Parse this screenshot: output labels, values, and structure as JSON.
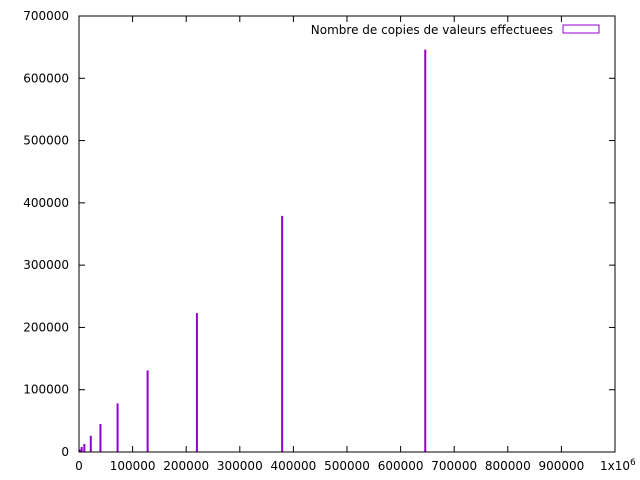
{
  "chart_data": {
    "type": "bar",
    "series": [
      {
        "name": "Nombre de copies de valeurs effectuees",
        "color": "#9400d3",
        "points": [
          {
            "x": 2000,
            "y": 4000
          },
          {
            "x": 5000,
            "y": 8000
          },
          {
            "x": 10000,
            "y": 13000
          },
          {
            "x": 22000,
            "y": 26000
          },
          {
            "x": 40000,
            "y": 45000
          },
          {
            "x": 72000,
            "y": 78000
          },
          {
            "x": 128000,
            "y": 131000
          },
          {
            "x": 220000,
            "y": 223000
          },
          {
            "x": 379000,
            "y": 379000
          },
          {
            "x": 646000,
            "y": 646000
          }
        ]
      }
    ],
    "xlim": [
      0,
      1000000
    ],
    "ylim": [
      0,
      700000
    ],
    "x_ticks": [
      {
        "value": 0,
        "label": "0"
      },
      {
        "value": 100000,
        "label": "100000"
      },
      {
        "value": 200000,
        "label": "200000"
      },
      {
        "value": 300000,
        "label": "300000"
      },
      {
        "value": 400000,
        "label": "400000"
      },
      {
        "value": 500000,
        "label": "500000"
      },
      {
        "value": 600000,
        "label": "600000"
      },
      {
        "value": 700000,
        "label": "700000"
      },
      {
        "value": 800000,
        "label": "800000"
      },
      {
        "value": 900000,
        "label": "900000"
      }
    ],
    "x_last_tick": {
      "value": 1000000,
      "label": "1x10",
      "exponent": "6"
    },
    "y_ticks": [
      {
        "value": 0,
        "label": "0"
      },
      {
        "value": 100000,
        "label": "100000"
      },
      {
        "value": 200000,
        "label": "200000"
      },
      {
        "value": 300000,
        "label": "300000"
      },
      {
        "value": 400000,
        "label": "400000"
      },
      {
        "value": 500000,
        "label": "500000"
      },
      {
        "value": 600000,
        "label": "600000"
      },
      {
        "value": 700000,
        "label": "700000"
      }
    ],
    "legend_position": "top-right",
    "grid": false
  }
}
